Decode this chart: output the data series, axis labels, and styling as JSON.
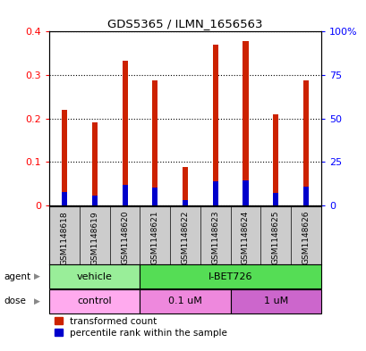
{
  "title": "GDS5365 / ILMN_1656563",
  "samples": [
    "GSM1148618",
    "GSM1148619",
    "GSM1148620",
    "GSM1148621",
    "GSM1148622",
    "GSM1148623",
    "GSM1148624",
    "GSM1148625",
    "GSM1148626"
  ],
  "transformed_count": [
    0.22,
    0.192,
    0.332,
    0.287,
    0.088,
    0.37,
    0.378,
    0.21,
    0.287
  ],
  "percentile_rank": [
    0.03,
    0.022,
    0.048,
    0.04,
    0.012,
    0.055,
    0.057,
    0.028,
    0.042
  ],
  "ylim": [
    0,
    0.4
  ],
  "y2lim": [
    0,
    100
  ],
  "yticks": [
    0,
    0.1,
    0.2,
    0.3,
    0.4
  ],
  "ytick_labels": [
    "0",
    "0.1",
    "0.2",
    "0.3",
    "0.4"
  ],
  "y2ticks": [
    0,
    25,
    50,
    75,
    100
  ],
  "y2tick_labels": [
    "0",
    "25",
    "50",
    "75",
    "100%"
  ],
  "bar_color_red": "#CC2200",
  "bar_color_blue": "#0000CC",
  "bar_width": 0.18,
  "agent_groups": [
    {
      "label": "vehicle",
      "start": 0,
      "end": 3,
      "color": "#99EE99"
    },
    {
      "label": "I-BET726",
      "start": 3,
      "end": 9,
      "color": "#55DD55"
    }
  ],
  "dose_groups": [
    {
      "label": "control",
      "start": 0,
      "end": 3,
      "color": "#FFAAEE"
    },
    {
      "label": "0.1 uM",
      "start": 3,
      "end": 6,
      "color": "#EE88DD"
    },
    {
      "label": "1 uM",
      "start": 6,
      "end": 9,
      "color": "#CC66CC"
    }
  ],
  "legend_items": [
    {
      "label": "transformed count",
      "color": "#CC2200"
    },
    {
      "label": "percentile rank within the sample",
      "color": "#0000CC"
    }
  ],
  "sample_label_bg": "#CCCCCC",
  "plot_bg": "#FFFFFF"
}
